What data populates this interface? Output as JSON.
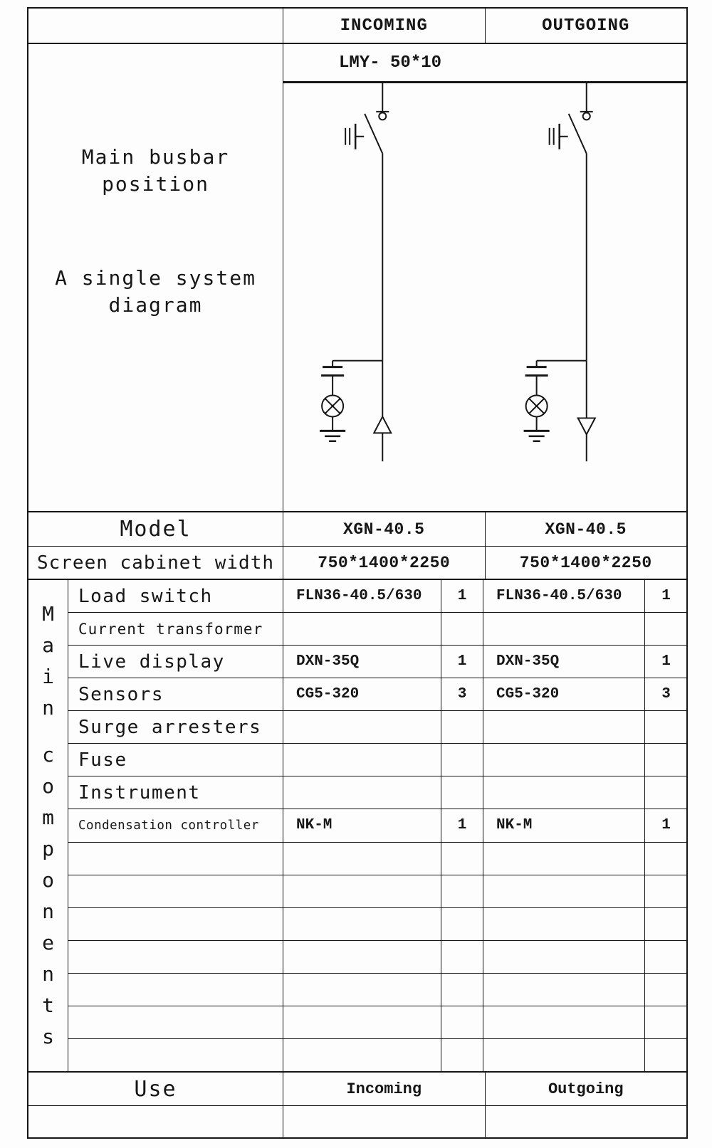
{
  "header": {
    "left": "",
    "incoming": "INCOMING",
    "outgoing": "OUTGOING"
  },
  "busbar": {
    "label": "LMY- 50*10"
  },
  "side": {
    "busbar_position": "Main busbar position",
    "system_diagram": "A single system diagram"
  },
  "model_row": {
    "label": "Model",
    "incoming": "XGN-40.5",
    "outgoing": "XGN-40.5"
  },
  "screen_row": {
    "label": "Screen cabinet width",
    "incoming": "750*1400*2250",
    "outgoing": "750*1400*2250"
  },
  "components": {
    "vertical_label_top": "Main",
    "vertical_label_bottom": "components",
    "rows": [
      {
        "label": "Load switch",
        "in_model": "FLN36-40.5/630",
        "in_qty": "1",
        "out_model": "FLN36-40.5/630",
        "out_qty": "1"
      },
      {
        "label": "Current transformer",
        "in_model": "",
        "in_qty": "",
        "out_model": "",
        "out_qty": ""
      },
      {
        "label": "Live display",
        "in_model": "DXN-35Q",
        "in_qty": "1",
        "out_model": "DXN-35Q",
        "out_qty": "1"
      },
      {
        "label": "Sensors",
        "in_model": "CG5-320",
        "in_qty": "3",
        "out_model": "CG5-320",
        "out_qty": "3"
      },
      {
        "label": "Surge arresters",
        "in_model": "",
        "in_qty": "",
        "out_model": "",
        "out_qty": ""
      },
      {
        "label": "Fuse",
        "in_model": "",
        "in_qty": "",
        "out_model": "",
        "out_qty": ""
      },
      {
        "label": "Instrument",
        "in_model": "",
        "in_qty": "",
        "out_model": "",
        "out_qty": ""
      },
      {
        "label": "Condensation controller",
        "in_model": "NK-M",
        "in_qty": "1",
        "out_model": "NK-M",
        "out_qty": "1"
      },
      {
        "label": "",
        "in_model": "",
        "in_qty": "",
        "out_model": "",
        "out_qty": ""
      },
      {
        "label": "",
        "in_model": "",
        "in_qty": "",
        "out_model": "",
        "out_qty": ""
      },
      {
        "label": "",
        "in_model": "",
        "in_qty": "",
        "out_model": "",
        "out_qty": ""
      },
      {
        "label": "",
        "in_model": "",
        "in_qty": "",
        "out_model": "",
        "out_qty": ""
      },
      {
        "label": "",
        "in_model": "",
        "in_qty": "",
        "out_model": "",
        "out_qty": ""
      },
      {
        "label": "",
        "in_model": "",
        "in_qty": "",
        "out_model": "",
        "out_qty": ""
      },
      {
        "label": "",
        "in_model": "",
        "in_qty": "",
        "out_model": "",
        "out_qty": ""
      }
    ]
  },
  "use_row": {
    "label": "Use",
    "incoming": "Incoming",
    "outgoing": "Outgoing"
  },
  "diagram": {
    "line_color": "#161616",
    "circuits": [
      {
        "name": "incoming-feeder",
        "arrow": "up",
        "symbols": [
          "busbar-tap",
          "load-switch-with-earthing-switch",
          "capacitive-voltage-tap",
          "live-display-lamp",
          "earth",
          "flow-arrow-up"
        ]
      },
      {
        "name": "outgoing-feeder",
        "arrow": "down",
        "symbols": [
          "busbar-tap",
          "load-switch-with-earthing-switch",
          "capacitive-voltage-tap",
          "live-display-lamp",
          "earth",
          "flow-arrow-down"
        ]
      }
    ]
  }
}
